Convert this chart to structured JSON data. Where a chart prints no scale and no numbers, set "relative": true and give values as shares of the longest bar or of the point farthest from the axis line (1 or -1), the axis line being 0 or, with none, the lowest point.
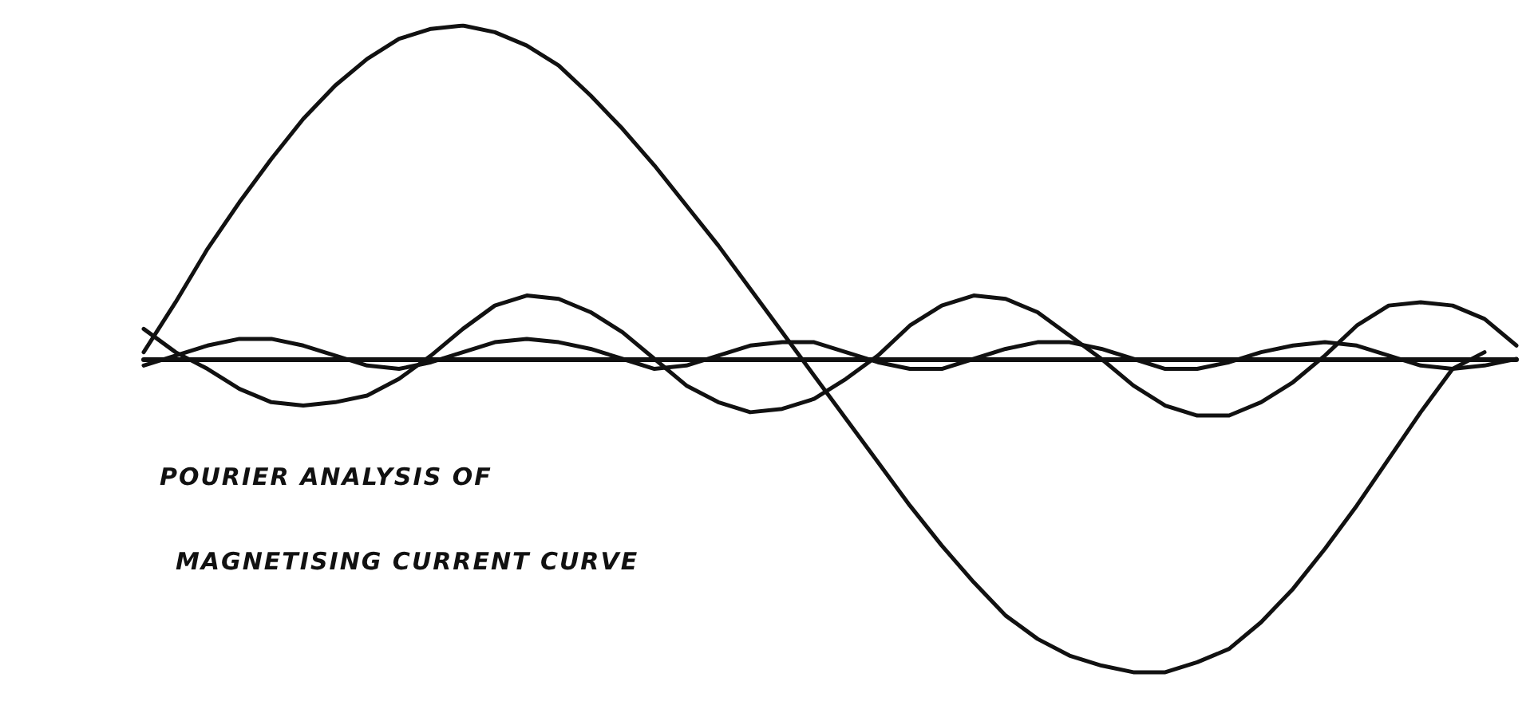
{
  "chart_data": {
    "type": "line",
    "relative": true,
    "marker": "none",
    "grid": false,
    "annotations": [
      "POURIER ANALYSIS OF",
      "MAGNETISING CURRENT CURVE"
    ],
    "categories": [
      null,
      null,
      null,
      null,
      null,
      null,
      null,
      null,
      null,
      null,
      null,
      null,
      null,
      null,
      null,
      null,
      null,
      null,
      null,
      null,
      null,
      null,
      null,
      null,
      null,
      null,
      null,
      null,
      null,
      null,
      null,
      null,
      null,
      null,
      null,
      null,
      null,
      null,
      null,
      null,
      null,
      null,
      null,
      null
    ],
    "series": [
      {
        "color": "#111111",
        "values": [
          0.02,
          0.17,
          0.33,
          0.47,
          0.6,
          0.72,
          0.82,
          0.9,
          0.96,
          0.99,
          1.0,
          0.98,
          0.94,
          0.88,
          0.79,
          0.69,
          0.58,
          0.46,
          0.34,
          0.21,
          0.08,
          -0.05,
          -0.18,
          -0.31,
          -0.44,
          -0.56,
          -0.67,
          -0.77,
          -0.84,
          -0.89,
          -0.92,
          -0.94,
          -0.94,
          -0.91,
          -0.87,
          -0.79,
          -0.69,
          -0.57,
          -0.44,
          -0.3,
          -0.16,
          -0.03,
          0.02,
          null
        ]
      },
      {
        "color": "#111111",
        "values": [
          0.09,
          0.02,
          -0.03,
          -0.09,
          -0.13,
          -0.14,
          -0.13,
          -0.11,
          -0.06,
          0.01,
          0.09,
          0.16,
          0.19,
          0.18,
          0.14,
          0.08,
          0.0,
          -0.08,
          -0.13,
          -0.16,
          -0.15,
          -0.12,
          -0.06,
          0.01,
          0.1,
          0.16,
          0.19,
          0.18,
          0.14,
          0.07,
          0.0,
          -0.08,
          -0.14,
          -0.17,
          -0.17,
          -0.13,
          -0.07,
          0.01,
          0.1,
          0.16,
          0.17,
          0.16,
          0.12,
          0.04
        ]
      },
      {
        "color": "#111111",
        "values": [
          -0.02,
          0.01,
          0.04,
          0.06,
          0.06,
          0.04,
          0.01,
          -0.02,
          -0.03,
          -0.01,
          0.02,
          0.05,
          0.06,
          0.05,
          0.03,
          0.0,
          -0.03,
          -0.02,
          0.01,
          0.04,
          0.05,
          0.05,
          0.02,
          -0.01,
          -0.03,
          -0.03,
          0.0,
          0.03,
          0.05,
          0.05,
          0.03,
          0.0,
          -0.03,
          -0.03,
          -0.01,
          0.02,
          0.04,
          0.05,
          0.04,
          0.01,
          -0.02,
          -0.03,
          -0.02,
          0.0
        ]
      }
    ]
  }
}
